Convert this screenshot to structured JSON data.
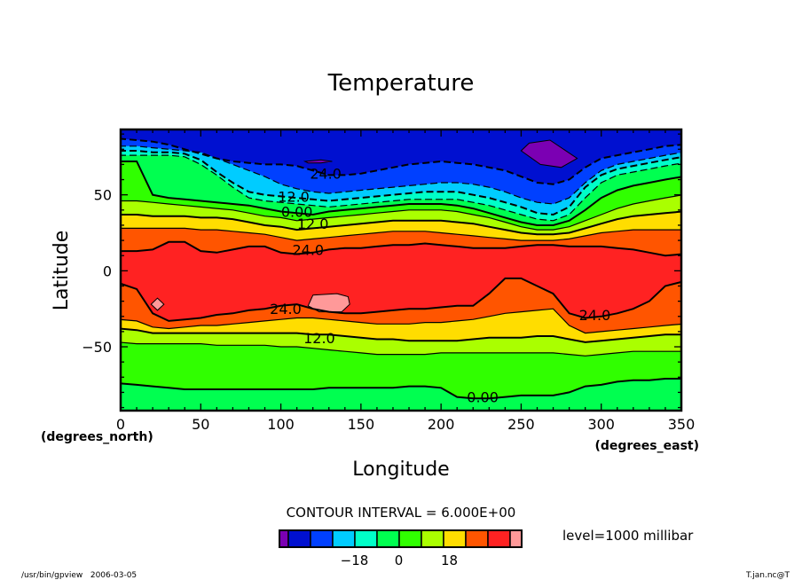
{
  "chart_data": {
    "type": "heatmap",
    "subtype": "filled-contour",
    "title": "Temperature",
    "xlabel": "Longitude",
    "ylabel": "Latitude",
    "x_unit_label": "(degrees_east)",
    "y_unit_label": "(degrees_north)",
    "xlim": [
      0,
      350
    ],
    "ylim": [
      -92,
      93
    ],
    "x_ticks": [
      0,
      50,
      100,
      150,
      200,
      250,
      300,
      350
    ],
    "x_tick_labels": [
      "0",
      "50",
      "100",
      "150",
      "200",
      "250",
      "300",
      "350"
    ],
    "y_ticks": [
      50,
      0,
      -50
    ],
    "y_tick_labels": [
      "50",
      "0",
      "−50"
    ],
    "contour_interval_text": "CONTOUR INTERVAL = 6.000E+00",
    "level_text": "level=1000 millibar",
    "contour_labels": [
      {
        "text": "24.0",
        "lon": 128,
        "lat": 64
      },
      {
        "text": "12.0",
        "lon": 108,
        "lat": 49
      },
      {
        "text": "0.00",
        "lon": 110,
        "lat": 39
      },
      {
        "text": "12.0",
        "lon": 120,
        "lat": 31
      },
      {
        "text": "24.0",
        "lon": 117,
        "lat": 14
      },
      {
        "text": "24.0",
        "lon": 103,
        "lat": -25
      },
      {
        "text": "12.0",
        "lon": 124,
        "lat": -44
      },
      {
        "text": "24.0",
        "lon": 296,
        "lat": -29
      },
      {
        "text": "0.00",
        "lon": 226,
        "lat": -83
      }
    ],
    "longitudes": [
      0,
      10,
      20,
      30,
      40,
      50,
      60,
      70,
      80,
      90,
      100,
      110,
      120,
      130,
      140,
      150,
      160,
      170,
      180,
      190,
      200,
      210,
      220,
      230,
      240,
      250,
      260,
      270,
      280,
      290,
      300,
      310,
      320,
      330,
      340,
      350
    ],
    "band_levels": [
      -30,
      -24,
      -18,
      -12,
      -6,
      0,
      6,
      12,
      18,
      24,
      30
    ],
    "band_colors": [
      "#7b00b3",
      "#0010d0",
      "#0040ff",
      "#00ccff",
      "#00ffc8",
      "#00ff50",
      "#30ff00",
      "#aaff00",
      "#ffdd00",
      "#ff5500",
      "#ff2222",
      "#ff9999"
    ],
    "isotherm_lat_north": {
      "-24": [
        87,
        86,
        85,
        83,
        80,
        77,
        74,
        72,
        71,
        70,
        70,
        69,
        66,
        63,
        63,
        64,
        66,
        68,
        70,
        71,
        72,
        71,
        70,
        68,
        66,
        62,
        58,
        57,
        60,
        68,
        74,
        76,
        78,
        80,
        82,
        83
      ],
      "-18": [
        82,
        82,
        81,
        80,
        79,
        78,
        74,
        70,
        66,
        62,
        57,
        54,
        52,
        51,
        52,
        53,
        54,
        55,
        56,
        57,
        58,
        58,
        57,
        55,
        52,
        48,
        45,
        44,
        48,
        58,
        66,
        70,
        72,
        74,
        76,
        78
      ],
      "-12": [
        79,
        79,
        78,
        78,
        77,
        73,
        65,
        58,
        52,
        50,
        49,
        48,
        47,
        46,
        47,
        48,
        49,
        50,
        51,
        52,
        52,
        52,
        50,
        48,
        45,
        42,
        38,
        37,
        42,
        55,
        63,
        67,
        69,
        71,
        73,
        75
      ],
      "-6": [
        76,
        76,
        76,
        76,
        75,
        70,
        63,
        55,
        48,
        46,
        45,
        44,
        43,
        42,
        43,
        44,
        45,
        46,
        47,
        47,
        47,
        47,
        45,
        43,
        40,
        37,
        34,
        33,
        37,
        48,
        58,
        63,
        65,
        67,
        69,
        71
      ],
      "0": [
        72,
        72,
        50,
        48,
        47,
        46,
        45,
        44,
        43,
        41,
        39,
        38,
        37,
        39,
        40,
        41,
        42,
        43,
        44,
        44,
        44,
        43,
        41,
        38,
        35,
        32,
        30,
        30,
        33,
        40,
        48,
        53,
        56,
        58,
        60,
        62
      ],
      "6": [
        46,
        46,
        45,
        44,
        43,
        42,
        41,
        40,
        38,
        36,
        35,
        33,
        34,
        35,
        36,
        37,
        38,
        39,
        40,
        40,
        40,
        39,
        37,
        35,
        32,
        29,
        27,
        27,
        29,
        33,
        37,
        41,
        44,
        46,
        48,
        50
      ],
      "12": [
        37,
        37,
        36,
        36,
        36,
        35,
        35,
        34,
        32,
        30,
        29,
        27,
        28,
        29,
        30,
        31,
        32,
        33,
        33,
        33,
        33,
        32,
        31,
        29,
        27,
        25,
        24,
        24,
        25,
        28,
        31,
        34,
        36,
        37,
        38,
        39
      ],
      "18": [
        28,
        28,
        28,
        28,
        28,
        27,
        27,
        26,
        25,
        24,
        22,
        20,
        21,
        22,
        23,
        24,
        25,
        26,
        26,
        26,
        25,
        24,
        23,
        22,
        21,
        20,
        20,
        20,
        21,
        23,
        25,
        26,
        27,
        27,
        27,
        27
      ],
      "24": [
        13,
        13,
        14,
        19,
        19,
        13,
        12,
        14,
        16,
        16,
        12,
        11,
        12,
        14,
        15,
        15,
        16,
        17,
        17,
        18,
        17,
        16,
        15,
        15,
        15,
        16,
        17,
        17,
        16,
        16,
        16,
        15,
        14,
        12,
        10,
        11
      ]
    },
    "isotherm_lat_south": {
      "24": [
        -8,
        -12,
        -28,
        -33,
        -32,
        -31,
        -29,
        -28,
        -26,
        -25,
        -23,
        -22,
        -25,
        -27,
        -28,
        -28,
        -27,
        -26,
        -25,
        -25,
        -24,
        -23,
        -23,
        -15,
        -5,
        -5,
        -10,
        -15,
        -28,
        -31,
        -30,
        -28,
        -25,
        -20,
        -10,
        -7
      ],
      "18": [
        -32,
        -33,
        -37,
        -38,
        -37,
        -36,
        -36,
        -35,
        -34,
        -33,
        -32,
        -31,
        -31,
        -32,
        -33,
        -34,
        -35,
        -35,
        -35,
        -34,
        -34,
        -33,
        -32,
        -30,
        -28,
        -27,
        -26,
        -25,
        -36,
        -41,
        -40,
        -39,
        -38,
        -37,
        -36,
        -35
      ],
      "12": [
        -38,
        -39,
        -41,
        -41,
        -41,
        -41,
        -41,
        -41,
        -41,
        -41,
        -41,
        -41,
        -42,
        -42,
        -43,
        -44,
        -45,
        -45,
        -46,
        -46,
        -46,
        -46,
        -45,
        -44,
        -44,
        -44,
        -43,
        -43,
        -45,
        -47,
        -46,
        -45,
        -44,
        -43,
        -42,
        -42
      ],
      "6": [
        -47,
        -48,
        -48,
        -48,
        -48,
        -48,
        -49,
        -49,
        -49,
        -49,
        -50,
        -50,
        -51,
        -52,
        -53,
        -54,
        -55,
        -55,
        -55,
        -55,
        -54,
        -54,
        -54,
        -54,
        -54,
        -54,
        -54,
        -54,
        -55,
        -56,
        -55,
        -54,
        -53,
        -53,
        -53,
        -53
      ],
      "0": [
        -74,
        -75,
        -76,
        -77,
        -78,
        -78,
        -78,
        -78,
        -78,
        -78,
        -78,
        -78,
        -78,
        -77,
        -77,
        -77,
        -77,
        -77,
        -76,
        -76,
        -77,
        -83,
        -84,
        -84,
        -83,
        -82,
        -82,
        -82,
        -80,
        -76,
        -75,
        -73,
        -72,
        -72,
        -71,
        -71
      ]
    },
    "cold_cores": [
      {
        "value": "below -24",
        "lon": [
          255,
          268,
          285,
          275,
          262,
          250
        ],
        "lat": [
          84,
          86,
          74,
          68,
          70,
          79
        ]
      },
      {
        "value": "below -24",
        "lon": [
          115,
          125,
          132,
          125,
          117
        ],
        "lat": [
          72,
          73,
          72,
          71,
          71
        ]
      }
    ],
    "warm_cores": [
      {
        "value": "above 30",
        "lon": [
          23,
          27,
          23,
          19
        ],
        "lat": [
          -18,
          -22,
          -26,
          -22
        ]
      },
      {
        "value": "above 30",
        "lon": [
          120,
          135,
          142,
          143,
          138,
          124,
          117
        ],
        "lat": [
          -16,
          -15,
          -17,
          -22,
          -27,
          -27,
          -23
        ]
      }
    ],
    "colorbar": {
      "labels": [
        "−18",
        "0",
        "18"
      ],
      "label_band_index": [
        3,
        5,
        8
      ]
    }
  },
  "footer": {
    "left": "/usr/bin/gpview   2006-03-05",
    "right": "T.jan.nc@T"
  }
}
